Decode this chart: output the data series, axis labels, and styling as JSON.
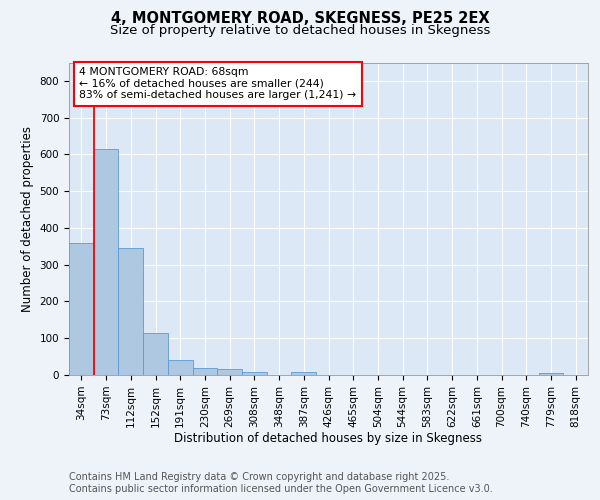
{
  "title": "4, MONTGOMERY ROAD, SKEGNESS, PE25 2EX",
  "subtitle": "Size of property relative to detached houses in Skegness",
  "xlabel": "Distribution of detached houses by size in Skegness",
  "ylabel": "Number of detached properties",
  "categories": [
    "34sqm",
    "73sqm",
    "112sqm",
    "152sqm",
    "191sqm",
    "230sqm",
    "269sqm",
    "308sqm",
    "348sqm",
    "387sqm",
    "426sqm",
    "465sqm",
    "504sqm",
    "544sqm",
    "583sqm",
    "622sqm",
    "661sqm",
    "700sqm",
    "740sqm",
    "779sqm",
    "818sqm"
  ],
  "values": [
    360,
    615,
    345,
    115,
    40,
    18,
    15,
    8,
    0,
    7,
    0,
    0,
    0,
    0,
    0,
    0,
    0,
    0,
    0,
    6,
    0
  ],
  "bar_color": "#adc8e0",
  "bar_edge_color": "#5b9bd5",
  "vline_color": "red",
  "annotation_text": "4 MONTGOMERY ROAD: 68sqm\n← 16% of detached houses are smaller (244)\n83% of semi-detached houses are larger (1,241) →",
  "ylim": [
    0,
    850
  ],
  "yticks": [
    0,
    100,
    200,
    300,
    400,
    500,
    600,
    700,
    800
  ],
  "footer_line1": "Contains HM Land Registry data © Crown copyright and database right 2025.",
  "footer_line2": "Contains public sector information licensed under the Open Government Licence v3.0.",
  "background_color": "#eef2f9",
  "plot_bg_color": "#dce8f5",
  "grid_color": "#ffffff",
  "title_fontsize": 10.5,
  "subtitle_fontsize": 9.5,
  "label_fontsize": 8.5,
  "tick_fontsize": 7.5,
  "footer_fontsize": 7.0,
  "annot_fontsize": 7.8
}
